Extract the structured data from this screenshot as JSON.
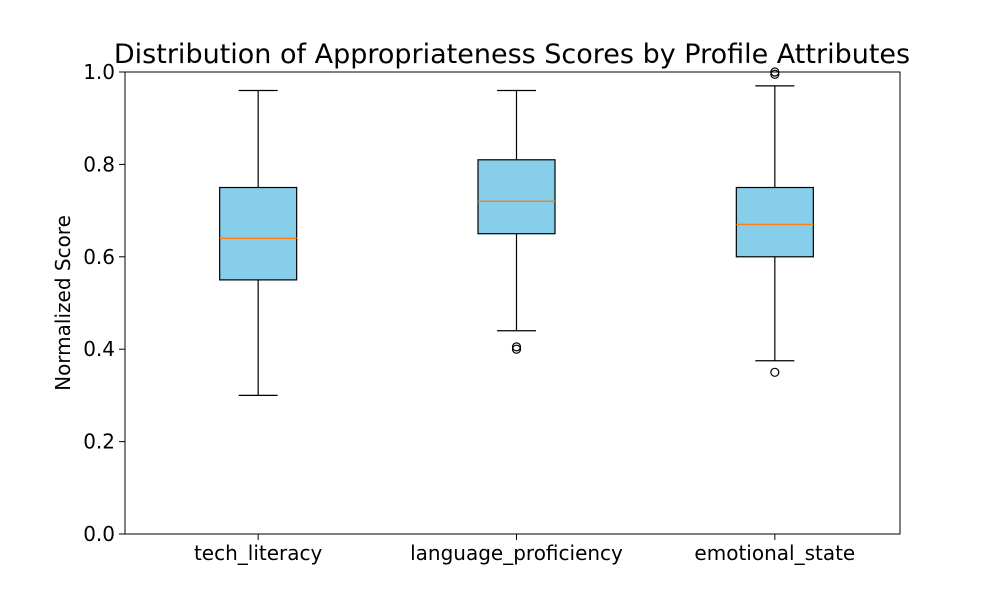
{
  "chart_data": {
    "type": "box",
    "title": "Distribution of Appropriateness Scores by Profile Attributes",
    "xlabel": "",
    "ylabel": "Normalized Score",
    "ylim": [
      0.0,
      1.0
    ],
    "yticks": [
      "0.0",
      "0.2",
      "0.4",
      "0.6",
      "0.8",
      "1.0"
    ],
    "categories": [
      "tech_literacy",
      "language_proficiency",
      "emotional_state"
    ],
    "grid": false,
    "legend": "none",
    "box_color": "#87ceeb",
    "median_color": "#ff7f0e",
    "boxes": [
      {
        "category": "tech_literacy",
        "whisker_low": 0.3,
        "q1": 0.55,
        "median": 0.64,
        "q3": 0.75,
        "whisker_high": 0.96,
        "outliers": []
      },
      {
        "category": "language_proficiency",
        "whisker_low": 0.44,
        "q1": 0.65,
        "median": 0.72,
        "q3": 0.81,
        "whisker_high": 0.96,
        "outliers": [
          0.4,
          0.405
        ]
      },
      {
        "category": "emotional_state",
        "whisker_low": 0.375,
        "q1": 0.6,
        "median": 0.67,
        "q3": 0.75,
        "whisker_high": 0.97,
        "outliers": [
          0.35,
          0.995,
          1.0
        ]
      }
    ]
  }
}
